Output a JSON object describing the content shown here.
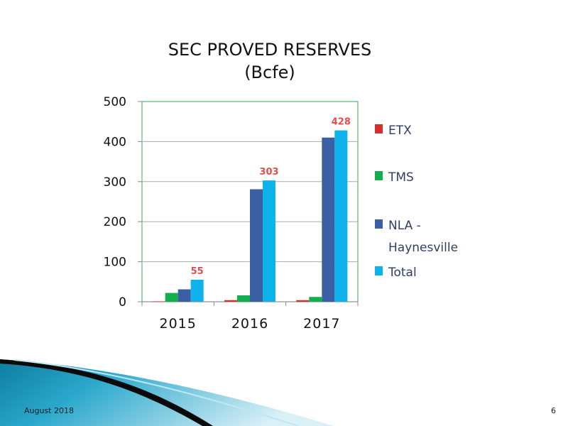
{
  "slide": {
    "footer_date": "August 2018",
    "page_number": "6"
  },
  "chart_data": {
    "type": "bar",
    "title": "SEC PROVED RESERVES",
    "subtitle": "(Bcfe)",
    "categories": [
      "2015",
      "2016",
      "2017"
    ],
    "ylim": [
      0,
      500
    ],
    "yticks": [
      0,
      100,
      200,
      300,
      400,
      500
    ],
    "grid": true,
    "legend_position": "right",
    "series": [
      {
        "name": "ETX",
        "color": "#d62d2d",
        "values": [
          1,
          4,
          4
        ]
      },
      {
        "name": "TMS",
        "color": "#12b04c",
        "values": [
          22,
          16,
          12
        ]
      },
      {
        "name": "NLA - Haynesville",
        "color": "#3a5fa3",
        "values": [
          31,
          281,
          410
        ]
      },
      {
        "name": "Total",
        "color": "#0eb3ec",
        "values": [
          55,
          303,
          428
        ]
      }
    ],
    "data_labels": {
      "series": "Total",
      "color": "#e94c4c",
      "values": [
        "55",
        "303",
        "428"
      ]
    }
  }
}
